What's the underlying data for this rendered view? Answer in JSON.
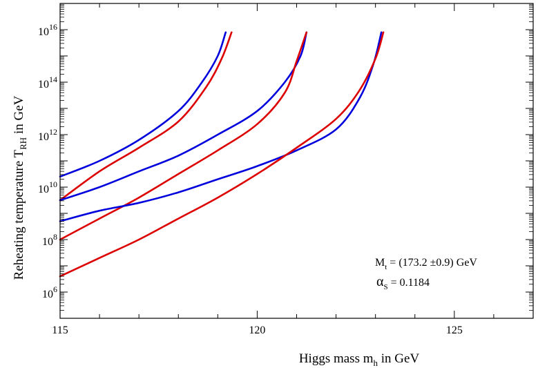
{
  "chart_data": {
    "type": "line",
    "title": "",
    "xlabel": {
      "main": "Higgs mass m",
      "sub": "h",
      "tail": " in GeV"
    },
    "ylabel": {
      "main": "Reheating temperature T",
      "sub": "RH",
      "tail": " in GeV"
    },
    "xlim": [
      115,
      127
    ],
    "ylim_log10": [
      5,
      17
    ],
    "x_ticks": [
      115,
      120,
      125
    ],
    "y_ticks": [
      {
        "exp": 6,
        "base": "10",
        "sup": "6"
      },
      {
        "exp": 8,
        "base": "10",
        "sup": "8"
      },
      {
        "exp": 10,
        "base": "10",
        "sup": "10"
      },
      {
        "exp": 12,
        "base": "10",
        "sup": "12"
      },
      {
        "exp": 14,
        "base": "10",
        "sup": "14"
      },
      {
        "exp": 16,
        "base": "10",
        "sup": "16"
      }
    ],
    "log_scale_y": true,
    "grid": false,
    "series": [
      {
        "color": "#0000dd",
        "x": [
          115,
          116,
          117,
          118,
          118.6,
          119.0,
          119.2
        ],
        "log10_y": [
          10.4,
          11.0,
          11.8,
          12.9,
          14.0,
          15.0,
          15.9
        ]
      },
      {
        "color": "#dd0000",
        "x": [
          115,
          116,
          117,
          118,
          118.7,
          119.1,
          119.35
        ],
        "log10_y": [
          9.5,
          10.6,
          11.5,
          12.5,
          13.8,
          14.9,
          15.9
        ]
      },
      {
        "color": "#0000dd",
        "x": [
          115,
          116,
          117,
          118,
          119,
          120,
          120.7,
          121.1,
          121.25
        ],
        "log10_y": [
          9.5,
          10.0,
          10.6,
          11.2,
          12.0,
          12.9,
          14.0,
          15.0,
          15.9
        ]
      },
      {
        "color": "#dd0000",
        "x": [
          115,
          116,
          117,
          118,
          119,
          120,
          120.7,
          121.0,
          121.25
        ],
        "log10_y": [
          8.0,
          8.8,
          9.6,
          10.5,
          11.4,
          12.4,
          13.6,
          14.8,
          15.9
        ]
      },
      {
        "color": "#0000dd",
        "x": [
          115,
          116,
          117,
          118,
          119,
          120,
          121,
          122,
          122.6,
          122.95,
          123.15
        ],
        "log10_y": [
          8.7,
          9.1,
          9.4,
          9.8,
          10.3,
          10.8,
          11.4,
          12.2,
          13.4,
          14.7,
          15.9
        ]
      },
      {
        "color": "#dd0000",
        "x": [
          115,
          116,
          117,
          118,
          119,
          120,
          121,
          122,
          122.6,
          123.0,
          123.2
        ],
        "log10_y": [
          6.6,
          7.3,
          8.0,
          8.8,
          9.6,
          10.5,
          11.5,
          12.6,
          13.7,
          14.9,
          15.9
        ]
      }
    ],
    "annotations": [
      {
        "id": "mt",
        "main": "M",
        "sub": "t",
        "tail": " = (173.2 ±0.9) GeV"
      },
      {
        "id": "alpha",
        "main": "α",
        "sub": "S",
        "tail": " = 0.1184"
      }
    ]
  }
}
